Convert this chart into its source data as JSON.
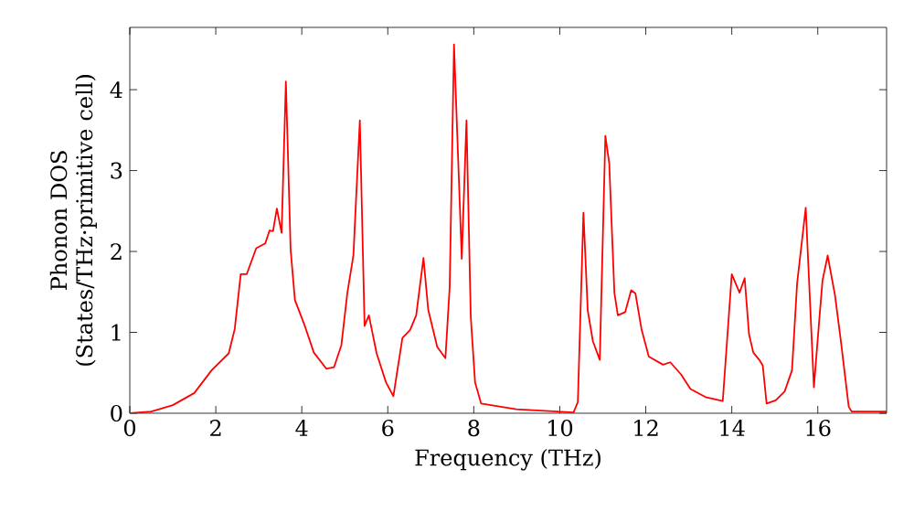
{
  "chart_data": {
    "type": "line",
    "xlabel": "Frequency (THz)",
    "ylabel": "Phonon DOS (States/THz·primitive cell)",
    "xlim": [
      0,
      17.6
    ],
    "ylim": [
      0,
      4.77
    ],
    "xticks": [
      0,
      2,
      4,
      6,
      8,
      10,
      12,
      14,
      16
    ],
    "yticks": [
      0,
      1,
      2,
      3,
      4
    ],
    "marker": "none",
    "line_style": "solid",
    "series": [
      {
        "color": "#ff0000",
        "x": [
          0,
          0.5,
          1,
          1.5,
          1.9,
          2.3,
          2.44,
          2.58,
          2.72,
          2.94,
          3.15,
          3.25,
          3.33,
          3.42,
          3.53,
          3.63,
          3.74,
          3.84,
          4.07,
          4.28,
          4.57,
          4.75,
          4.92,
          5.06,
          5.2,
          5.35,
          5.46,
          5.56,
          5.74,
          5.96,
          6.13,
          6.34,
          6.52,
          6.66,
          6.83,
          6.94,
          7.15,
          7.34,
          7.44,
          7.54,
          7.72,
          7.83,
          7.93,
          8.03,
          8.17,
          8.99,
          10.32,
          10.42,
          10.55,
          10.65,
          10.77,
          10.93,
          11.06,
          11.15,
          11.27,
          11.35,
          11.52,
          11.66,
          11.76,
          11.9,
          12.07,
          12.4,
          12.57,
          12.82,
          13.04,
          13.39,
          13.79,
          14.0,
          14.18,
          14.3,
          14.4,
          14.5,
          14.64,
          14.72,
          14.81,
          15.02,
          15.23,
          15.4,
          15.52,
          15.72,
          15.91,
          16.04,
          16.11,
          16.23,
          16.4,
          16.54,
          16.72,
          16.79,
          17.6
        ],
        "values": [
          0,
          0.02,
          0.1,
          0.25,
          0.53,
          0.74,
          1.04,
          1.72,
          1.72,
          2.04,
          2.1,
          2.26,
          2.25,
          2.53,
          2.23,
          4.1,
          2.02,
          1.4,
          1.08,
          0.75,
          0.55,
          0.57,
          0.84,
          1.49,
          1.95,
          3.62,
          1.08,
          1.21,
          0.74,
          0.38,
          0.21,
          0.93,
          1.03,
          1.21,
          1.92,
          1.28,
          0.82,
          0.68,
          1.57,
          4.56,
          1.91,
          3.62,
          1.19,
          0.38,
          0.12,
          0.05,
          0.01,
          0.14,
          2.48,
          1.27,
          0.89,
          0.66,
          3.43,
          3.09,
          1.49,
          1.21,
          1.25,
          1.52,
          1.48,
          1.04,
          0.7,
          0.6,
          0.63,
          0.48,
          0.3,
          0.2,
          0.15,
          1.72,
          1.49,
          1.67,
          0.98,
          0.75,
          0.66,
          0.59,
          0.12,
          0.16,
          0.27,
          0.53,
          1.61,
          2.54,
          0.32,
          1.19,
          1.64,
          1.95,
          1.46,
          0.88,
          0.08,
          0.02,
          0.02
        ]
      }
    ]
  }
}
